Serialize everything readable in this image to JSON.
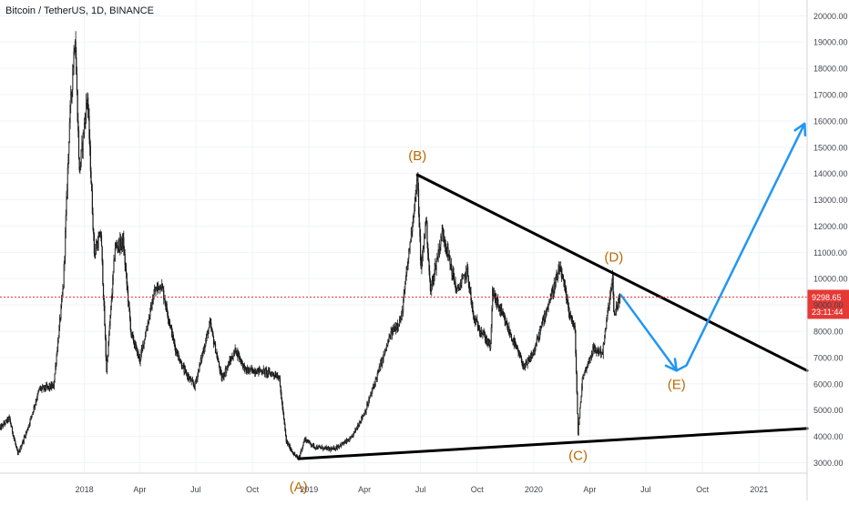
{
  "header": {
    "title": "Bitcoin / TetherUS, 1D, BINANCE"
  },
  "colors": {
    "background": "#ffffff",
    "grid": "#f0f3fa",
    "candle": "#1a1a1a",
    "trendline": "#000000",
    "projection": "#2196f3",
    "wave_label": "#b86a00",
    "price_line": "#e53935",
    "axis_text": "#434651"
  },
  "chart_data": {
    "type": "candlestick",
    "symbol": "Bitcoin / TetherUS",
    "interval": "1D",
    "exchange": "BINANCE",
    "grid": true,
    "ylim": [
      2600,
      20600
    ],
    "xlim": [
      "2017-08-17",
      "2021-03-20"
    ],
    "y_ticks": [
      "3000.00",
      "4000.00",
      "5000.00",
      "6000.00",
      "7000.00",
      "8000.00",
      "9000.00",
      "10000.00",
      "11000.00",
      "12000.00",
      "13000.00",
      "14000.00",
      "15000.00",
      "16000.00",
      "17000.00",
      "18000.00",
      "19000.00",
      "20000.00"
    ],
    "x_ticks": [
      {
        "label": "2018",
        "date": "2018-01-01"
      },
      {
        "label": "Apr",
        "date": "2018-04-01"
      },
      {
        "label": "Jul",
        "date": "2018-07-01"
      },
      {
        "label": "Oct",
        "date": "2018-10-01"
      },
      {
        "label": "2019",
        "date": "2019-01-01"
      },
      {
        "label": "Apr",
        "date": "2019-04-01"
      },
      {
        "label": "Jul",
        "date": "2019-07-01"
      },
      {
        "label": "Oct",
        "date": "2019-10-01"
      },
      {
        "label": "2020",
        "date": "2020-01-01"
      },
      {
        "label": "Apr",
        "date": "2020-04-01"
      },
      {
        "label": "Jul",
        "date": "2020-07-01"
      },
      {
        "label": "Oct",
        "date": "2020-10-01"
      },
      {
        "label": "2021",
        "date": "2021-01-01"
      }
    ],
    "price_path": [
      [
        "2017-08-17",
        4300
      ],
      [
        "2017-09-01",
        4700
      ],
      [
        "2017-09-15",
        3300
      ],
      [
        "2017-10-01",
        4300
      ],
      [
        "2017-10-20",
        5800
      ],
      [
        "2017-11-12",
        5900
      ],
      [
        "2017-11-28",
        9800
      ],
      [
        "2017-12-08",
        16000
      ],
      [
        "2017-12-17",
        19300
      ],
      [
        "2017-12-24",
        14000
      ],
      [
        "2018-01-06",
        17000
      ],
      [
        "2018-01-17",
        11000
      ],
      [
        "2018-01-28",
        11700
      ],
      [
        "2018-02-06",
        6500
      ],
      [
        "2018-02-20",
        11200
      ],
      [
        "2018-03-05",
        11400
      ],
      [
        "2018-03-18",
        7900
      ],
      [
        "2018-04-01",
        6900
      ],
      [
        "2018-04-25",
        9500
      ],
      [
        "2018-05-06",
        9800
      ],
      [
        "2018-05-28",
        7400
      ],
      [
        "2018-06-12",
        6500
      ],
      [
        "2018-06-29",
        5900
      ],
      [
        "2018-07-24",
        8300
      ],
      [
        "2018-08-12",
        6200
      ],
      [
        "2018-09-04",
        7300
      ],
      [
        "2018-09-20",
        6500
      ],
      [
        "2018-10-15",
        6500
      ],
      [
        "2018-11-13",
        6300
      ],
      [
        "2018-11-25",
        3800
      ],
      [
        "2018-12-08",
        3300
      ],
      [
        "2018-12-15",
        3150
      ],
      [
        "2018-12-25",
        3900
      ],
      [
        "2019-01-10",
        3600
      ],
      [
        "2019-02-08",
        3500
      ],
      [
        "2019-03-10",
        3900
      ],
      [
        "2019-04-03",
        5000
      ],
      [
        "2019-05-14",
        7900
      ],
      [
        "2019-05-31",
        8500
      ],
      [
        "2019-06-26",
        13800
      ],
      [
        "2019-07-02",
        10300
      ],
      [
        "2019-07-10",
        12300
      ],
      [
        "2019-07-17",
        9500
      ],
      [
        "2019-08-06",
        11800
      ],
      [
        "2019-08-29",
        9500
      ],
      [
        "2019-09-15",
        10300
      ],
      [
        "2019-09-25",
        8500
      ],
      [
        "2019-10-23",
        7400
      ],
      [
        "2019-10-26",
        9500
      ],
      [
        "2019-11-20",
        8100
      ],
      [
        "2019-12-17",
        6600
      ],
      [
        "2020-01-01",
        7200
      ],
      [
        "2020-01-20",
        8700
      ],
      [
        "2020-02-13",
        10400
      ],
      [
        "2020-02-27",
        8800
      ],
      [
        "2020-03-08",
        8000
      ],
      [
        "2020-03-13",
        4100
      ],
      [
        "2020-03-20",
        6200
      ],
      [
        "2020-04-06",
        7300
      ],
      [
        "2020-04-22",
        7200
      ],
      [
        "2020-04-30",
        8700
      ],
      [
        "2020-05-08",
        10000
      ],
      [
        "2020-05-10",
        8600
      ],
      [
        "2020-05-20",
        9300
      ]
    ],
    "trendlines": [
      {
        "name": "upper",
        "from": [
          "2019-06-26",
          13950
        ],
        "to": [
          "2021-03-20",
          6500
        ]
      },
      {
        "name": "lower",
        "from": [
          "2018-12-15",
          3150
        ],
        "to": [
          "2021-03-20",
          4300
        ]
      }
    ],
    "projection": [
      [
        "2020-05-21",
        9400
      ],
      [
        "2020-08-20",
        6500
      ],
      [
        "2020-09-05",
        6700
      ],
      [
        "2021-03-16",
        15900
      ]
    ],
    "wave_labels": [
      {
        "text": "(A)",
        "date": "2018-12-15",
        "price": 2600,
        "anchor": "below"
      },
      {
        "text": "(B)",
        "date": "2019-06-26",
        "price": 13950,
        "anchor": "above"
      },
      {
        "text": "(C)",
        "date": "2020-03-13",
        "price": 3800,
        "anchor": "below"
      },
      {
        "text": "(D)",
        "date": "2020-05-10",
        "price": 10100,
        "anchor": "above"
      },
      {
        "text": "(E)",
        "date": "2020-08-20",
        "price": 6500,
        "anchor": "below"
      }
    ],
    "last_price": {
      "value": 9298.65,
      "label": "9298.65",
      "countdown": "23:11:44"
    }
  }
}
